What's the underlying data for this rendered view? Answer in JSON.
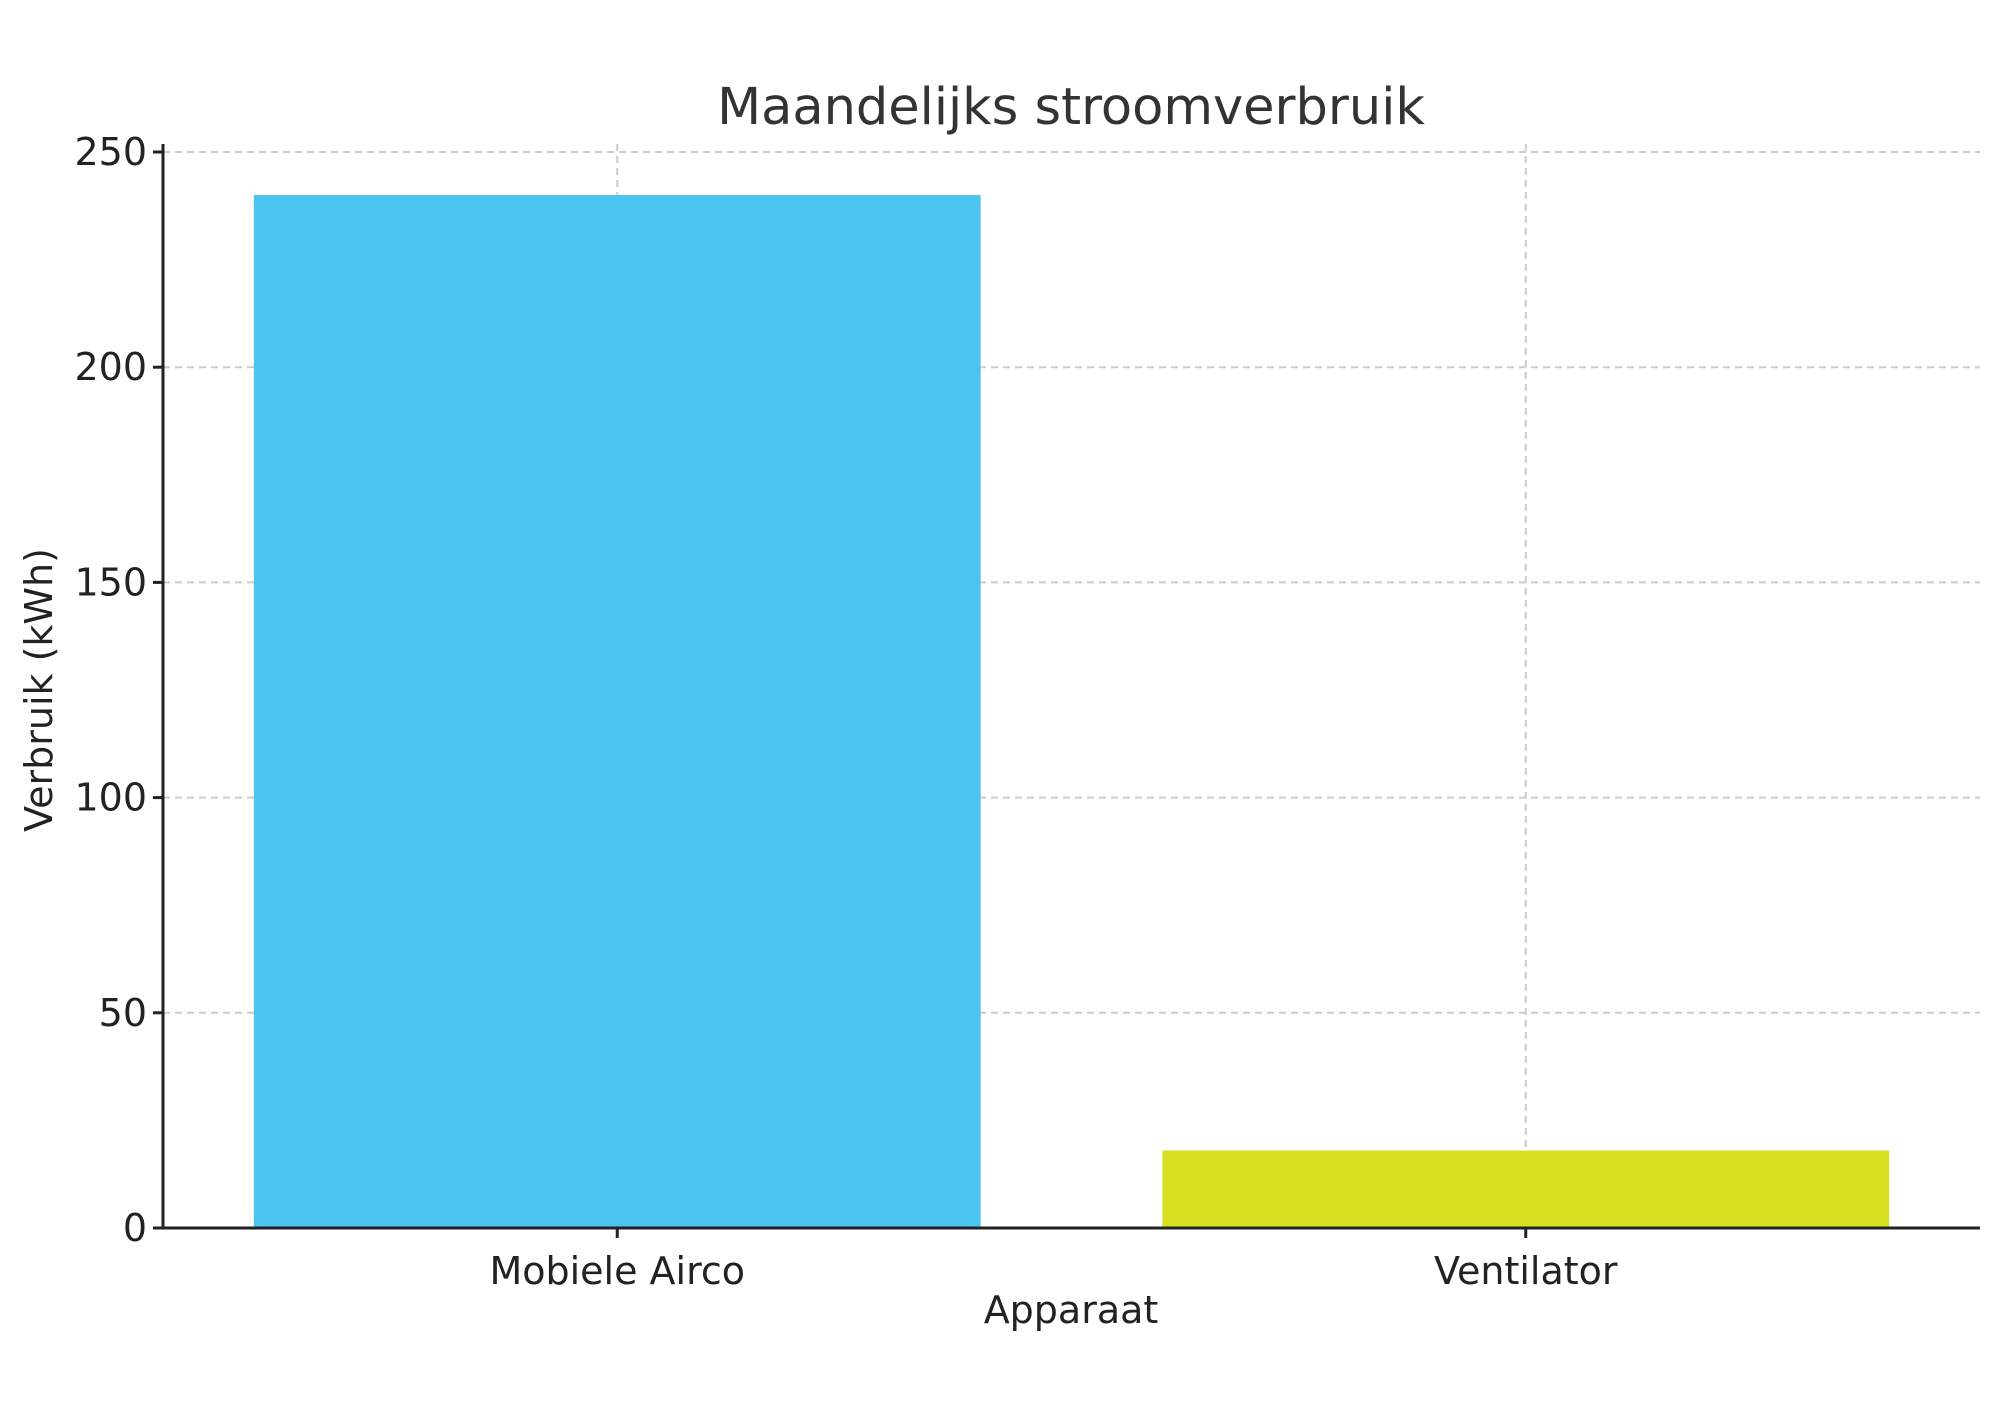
{
  "chart_data": {
    "type": "bar",
    "title": "Maandelijks stroomverbruik",
    "xlabel": "Apparaat",
    "ylabel": "Verbruik (kWh)",
    "categories": [
      "Mobiele Airco",
      "Ventilator"
    ],
    "values": [
      240,
      18
    ],
    "colors": [
      "#4cc4f0",
      "#d6e021"
    ],
    "ylim": [
      0,
      250
    ],
    "yticks": [
      "0",
      "50",
      "100",
      "150",
      "200",
      "250"
    ],
    "grid": true
  }
}
